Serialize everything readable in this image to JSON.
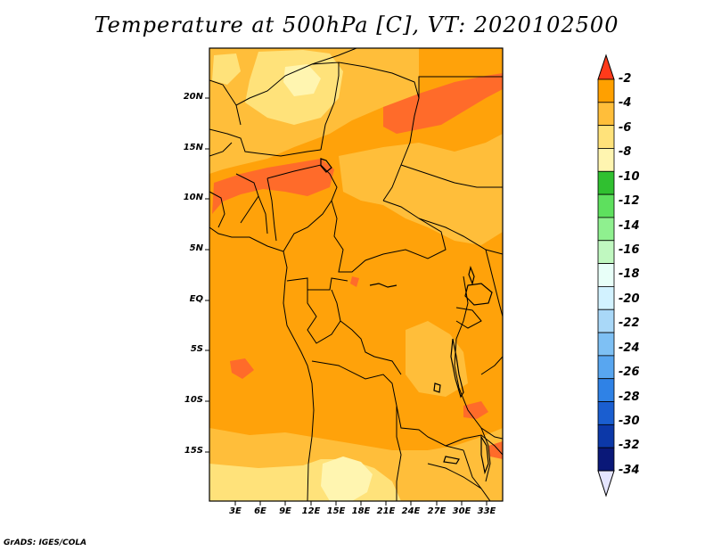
{
  "title": "Temperature at 500hPa [C], VT: 2020102500",
  "credit": "GrADS: IGES/COLA",
  "map": {
    "lat_ticks": [
      "20N",
      "15N",
      "10N",
      "5N",
      "EQ",
      "5S",
      "10S",
      "15S"
    ],
    "lon_ticks": [
      "3E",
      "6E",
      "9E",
      "12E",
      "15E",
      "18E",
      "21E",
      "24E",
      "27E",
      "30E",
      "33E"
    ],
    "fill_colors": {
      "-2_to_-4": "#ff6b2a",
      "-4_to_-6": "#ffa20a",
      "-6_to_-8": "#ffbe3a",
      "-8_to_-10": "#ffe27a",
      "-10_to_-12": "#fff5b0"
    }
  },
  "colorbar": {
    "labels": [
      "-2",
      "-4",
      "-6",
      "-8",
      "-10",
      "-12",
      "-14",
      "-16",
      "-18",
      "-20",
      "-22",
      "-24",
      "-26",
      "-28",
      "-30",
      "-32",
      "-34"
    ],
    "top_arrow_color": "#ff3a1a",
    "bottom_arrow_color": "#e5e5ff",
    "colors": [
      "#f05a10",
      "#ffa000",
      "#ffbe3a",
      "#ffe27a",
      "#fff5b0",
      "#30c030",
      "#5ee05e",
      "#8ff08f",
      "#c0f8c0",
      "#e8fff8",
      "#d2f2ff",
      "#a9d8f8",
      "#7ec0f4",
      "#58a6f0",
      "#2f82e6",
      "#1a5ed0",
      "#0c38a8",
      "#0a1878"
    ]
  }
}
